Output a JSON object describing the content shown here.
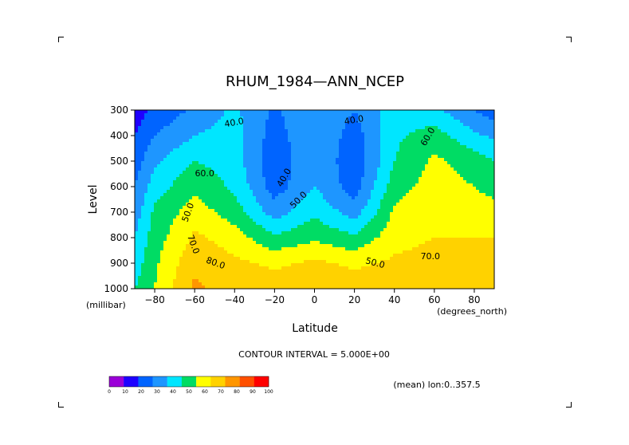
{
  "chart_data": {
    "type": "contour",
    "title": "RHUM_1984—ANN_NCEP",
    "xlabel": "Latitude",
    "ylabel": "Level",
    "x_unit_label": "(degrees_north)",
    "y_unit_label": "(millibar)",
    "x_ticks": [
      -80,
      -60,
      -40,
      -20,
      0,
      20,
      40,
      60,
      80
    ],
    "x_tick_labels": [
      "−80",
      "−60",
      "−40",
      "−20",
      "0",
      "20",
      "40",
      "60",
      "80"
    ],
    "y_ticks": [
      300,
      400,
      500,
      600,
      700,
      800,
      900,
      1000
    ],
    "xlim": [
      -90,
      90
    ],
    "ylim": [
      1000,
      300
    ],
    "contour_interval_text": "CONTOUR INTERVAL = 5.000E+00",
    "mean_text": "(mean) lon:0..357.5",
    "contour_labels": [
      "40.0",
      "40.0",
      "50.0",
      "60.0",
      "50.0",
      "70.0",
      "80.0",
      "40.0",
      "50.0",
      "60.0",
      "70.0"
    ],
    "colorbar": {
      "ticks": [
        "0",
        "10",
        "20",
        "30",
        "40",
        "50",
        "60",
        "70",
        "80",
        "90",
        "100"
      ],
      "colors": [
        "#9b00d8",
        "#1e00ff",
        "#0064ff",
        "#1e96ff",
        "#00e6ff",
        "#00dc64",
        "#ffff00",
        "#ffd200",
        "#ff9600",
        "#ff5000",
        "#ff0000"
      ]
    },
    "field_rh_percent": {
      "lat": [
        -90,
        -80,
        -60,
        -40,
        -20,
        0,
        20,
        40,
        60,
        80,
        90
      ],
      "pressure": [
        300,
        400,
        500,
        600,
        700,
        800,
        900,
        1000
      ],
      "values": [
        [
          15,
          22,
          32,
          42,
          28,
          40,
          30,
          45,
          42,
          30,
          25
        ],
        [
          20,
          30,
          40,
          45,
          25,
          40,
          25,
          48,
          55,
          42,
          38
        ],
        [
          25,
          38,
          50,
          45,
          22,
          40,
          22,
          50,
          62,
          55,
          50
        ],
        [
          30,
          45,
          58,
          48,
          25,
          40,
          25,
          55,
          65,
          60,
          56
        ],
        [
          35,
          52,
          65,
          55,
          35,
          48,
          35,
          62,
          68,
          66,
          64
        ],
        [
          40,
          55,
          72,
          65,
          52,
          58,
          52,
          66,
          70,
          70,
          70
        ],
        [
          45,
          58,
          78,
          72,
          68,
          72,
          68,
          72,
          74,
          74,
          74
        ],
        [
          50,
          60,
          82,
          76,
          76,
          78,
          76,
          78,
          78,
          78,
          78
        ]
      ]
    }
  }
}
